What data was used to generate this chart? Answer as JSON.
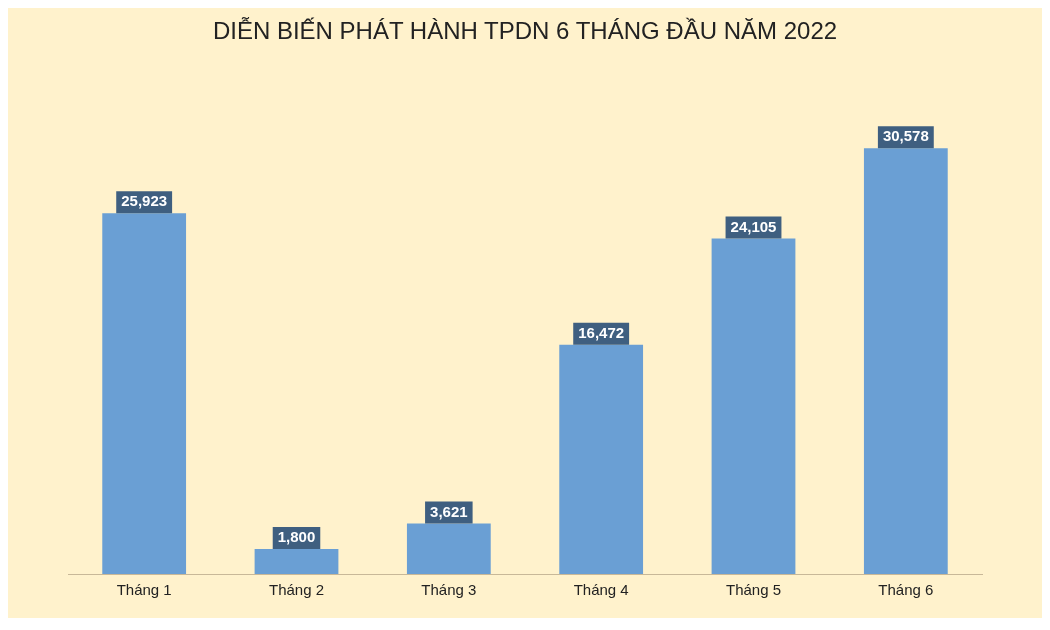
{
  "chart_data": {
    "type": "bar",
    "title": "DIỄN BIẾN PHÁT HÀNH TPDN 6 THÁNG ĐẦU NĂM 2022",
    "categories": [
      "Tháng 1",
      "Tháng 2",
      "Tháng 3",
      "Tháng 4",
      "Tháng 5",
      "Tháng 6"
    ],
    "values": [
      25923,
      1800,
      3621,
      16472,
      24105,
      30578
    ],
    "value_labels": [
      "25,923",
      "1,800",
      "3,621",
      "16,472",
      "24,105",
      "30,578"
    ],
    "color": "#6a9fd4",
    "grid": false,
    "legend": false
  }
}
